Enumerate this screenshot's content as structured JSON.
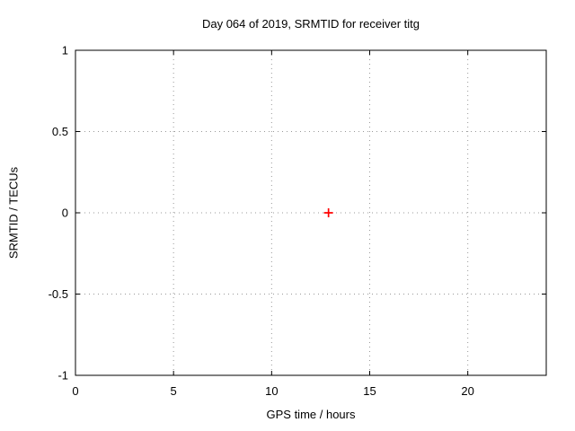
{
  "chart_data": {
    "type": "scatter",
    "title": "Day 064 of 2019, SRMTID for receiver titg",
    "xlabel": "GPS time / hours",
    "ylabel": "SRMTID / TECUs",
    "xlim": [
      0,
      24
    ],
    "ylim": [
      -1,
      1
    ],
    "xticks": [
      0,
      5,
      10,
      15,
      20
    ],
    "yticks": [
      -1,
      -0.5,
      0,
      0.5,
      1
    ],
    "grid": "dotted",
    "legend": "none",
    "series": [
      {
        "name": "SRMTID",
        "marker": "plus",
        "color": "#ff0000",
        "points": [
          {
            "x": 12.9,
            "y": 0.0
          }
        ]
      }
    ],
    "colors": {
      "background": "#ffffff",
      "axis": "#000000",
      "grid": "#999999",
      "text": "#000000"
    }
  }
}
